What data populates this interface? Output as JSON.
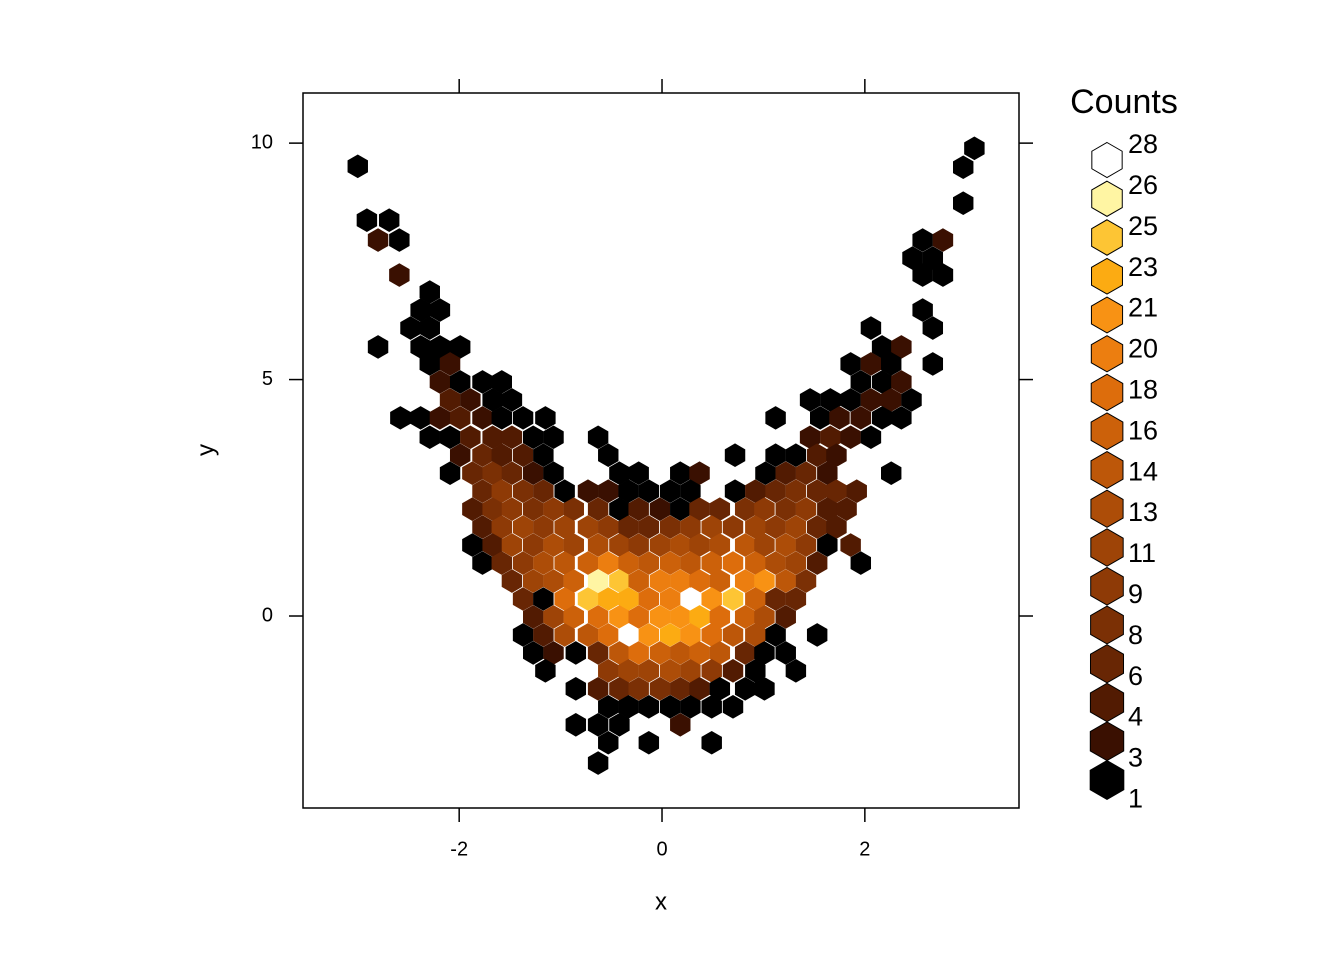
{
  "chart_data": {
    "type": "hexbin",
    "x_label": "x",
    "y_label": "y",
    "xlim": [
      -3.54,
      3.52
    ],
    "ylim": [
      -4.06,
      11.06
    ],
    "xticks": [
      -2,
      0,
      2
    ],
    "yticks": [
      0,
      5,
      10
    ],
    "legend": {
      "title": "Counts",
      "position": "right",
      "levels": [
        {
          "value": 28,
          "color": "#ffffff"
        },
        {
          "value": 26,
          "color": "#fff5a3"
        },
        {
          "value": 25,
          "color": "#fdc534"
        },
        {
          "value": 23,
          "color": "#fcab12"
        },
        {
          "value": 21,
          "color": "#f89214"
        },
        {
          "value": 20,
          "color": "#ec7e10"
        },
        {
          "value": 18,
          "color": "#dd6d0c"
        },
        {
          "value": 16,
          "color": "#cc610a"
        },
        {
          "value": 14,
          "color": "#bd5709"
        },
        {
          "value": 13,
          "color": "#ad4d08"
        },
        {
          "value": 11,
          "color": "#9e4407"
        },
        {
          "value": 9,
          "color": "#8e3a06"
        },
        {
          "value": 8,
          "color": "#7b3005"
        },
        {
          "value": 6,
          "color": "#682604"
        },
        {
          "value": 4,
          "color": "#521b02"
        },
        {
          "value": 3,
          "color": "#3a1001"
        },
        {
          "value": 1,
          "color": "#000000"
        }
      ]
    },
    "cells": [
      [
        -3.0,
        9.51,
        1
      ],
      [
        3.08,
        9.89,
        1
      ],
      [
        2.97,
        9.49,
        1
      ],
      [
        2.97,
        8.73,
        1
      ],
      [
        -2.91,
        8.37,
        1
      ],
      [
        -2.69,
        8.37,
        1
      ],
      [
        -2.8,
        7.95,
        3
      ],
      [
        -2.59,
        7.95,
        1
      ],
      [
        2.57,
        7.95,
        1
      ],
      [
        2.77,
        7.95,
        3
      ],
      [
        2.47,
        7.57,
        1
      ],
      [
        2.67,
        7.57,
        1
      ],
      [
        -2.59,
        7.21,
        3
      ],
      [
        2.57,
        7.21,
        1
      ],
      [
        2.77,
        7.21,
        1
      ],
      [
        -2.29,
        6.85,
        1
      ],
      [
        -2.38,
        6.47,
        1
      ],
      [
        -2.19,
        6.47,
        1
      ],
      [
        2.57,
        6.47,
        1
      ],
      [
        -2.48,
        6.09,
        1
      ],
      [
        -2.29,
        6.09,
        1
      ],
      [
        2.06,
        6.09,
        1
      ],
      [
        2.67,
        6.09,
        1
      ],
      [
        -2.8,
        5.69,
        1
      ],
      [
        -2.38,
        5.69,
        1
      ],
      [
        -2.19,
        5.69,
        1
      ],
      [
        -1.99,
        5.69,
        1
      ],
      [
        2.17,
        5.69,
        1
      ],
      [
        2.36,
        5.69,
        3
      ],
      [
        -2.29,
        5.33,
        1
      ],
      [
        -2.09,
        5.33,
        3
      ],
      [
        1.86,
        5.33,
        1
      ],
      [
        2.06,
        5.33,
        3
      ],
      [
        2.26,
        5.33,
        1
      ],
      [
        2.67,
        5.33,
        1
      ],
      [
        -2.19,
        4.95,
        3
      ],
      [
        -1.99,
        4.95,
        1
      ],
      [
        -1.77,
        4.95,
        1
      ],
      [
        -1.58,
        4.95,
        1
      ],
      [
        1.96,
        4.95,
        1
      ],
      [
        2.17,
        4.95,
        1
      ],
      [
        2.36,
        4.95,
        3
      ],
      [
        -2.09,
        4.57,
        4
      ],
      [
        -1.89,
        4.57,
        3
      ],
      [
        -1.67,
        4.57,
        1
      ],
      [
        -1.48,
        4.57,
        1
      ],
      [
        1.46,
        4.57,
        1
      ],
      [
        1.66,
        4.57,
        1
      ],
      [
        1.86,
        4.57,
        1
      ],
      [
        2.06,
        4.57,
        3
      ],
      [
        2.26,
        4.57,
        3
      ],
      [
        2.46,
        4.57,
        1
      ],
      [
        -2.58,
        4.19,
        1
      ],
      [
        -2.38,
        4.19,
        1
      ],
      [
        -2.19,
        4.19,
        3
      ],
      [
        -1.99,
        4.19,
        4
      ],
      [
        -1.77,
        4.19,
        3
      ],
      [
        -1.58,
        4.19,
        1
      ],
      [
        -1.37,
        4.19,
        1
      ],
      [
        -1.15,
        4.19,
        1
      ],
      [
        1.12,
        4.19,
        1
      ],
      [
        1.56,
        4.19,
        1
      ],
      [
        1.75,
        4.19,
        3
      ],
      [
        1.96,
        4.19,
        3
      ],
      [
        2.17,
        4.19,
        1
      ],
      [
        2.36,
        4.19,
        1
      ],
      [
        -2.29,
        3.78,
        1
      ],
      [
        -2.09,
        3.78,
        1
      ],
      [
        -1.89,
        3.78,
        4
      ],
      [
        -1.67,
        3.78,
        4
      ],
      [
        -1.48,
        3.78,
        4
      ],
      [
        -1.27,
        3.78,
        1
      ],
      [
        -1.07,
        3.78,
        1
      ],
      [
        -0.63,
        3.78,
        1
      ],
      [
        1.46,
        3.78,
        3
      ],
      [
        1.66,
        3.78,
        4
      ],
      [
        1.86,
        3.78,
        3
      ],
      [
        2.06,
        3.78,
        1
      ],
      [
        -1.99,
        3.4,
        3
      ],
      [
        -1.77,
        3.4,
        6
      ],
      [
        -1.58,
        3.4,
        4
      ],
      [
        -1.37,
        3.4,
        4
      ],
      [
        -1.17,
        3.4,
        1
      ],
      [
        -0.53,
        3.4,
        1
      ],
      [
        0.72,
        3.4,
        1
      ],
      [
        1.12,
        3.4,
        1
      ],
      [
        1.32,
        3.4,
        1
      ],
      [
        1.53,
        3.4,
        4
      ],
      [
        1.72,
        3.4,
        3
      ],
      [
        -2.09,
        3.02,
        1
      ],
      [
        -1.87,
        3.02,
        6
      ],
      [
        -1.67,
        3.02,
        8
      ],
      [
        -1.48,
        3.02,
        6
      ],
      [
        -1.27,
        3.02,
        3
      ],
      [
        -1.07,
        3.02,
        1
      ],
      [
        -0.42,
        3.02,
        1
      ],
      [
        -0.23,
        3.02,
        1
      ],
      [
        0.18,
        3.02,
        1
      ],
      [
        0.37,
        3.02,
        3
      ],
      [
        1.02,
        3.02,
        1
      ],
      [
        1.22,
        3.02,
        4
      ],
      [
        1.42,
        3.02,
        6
      ],
      [
        1.63,
        3.02,
        3
      ],
      [
        2.26,
        3.02,
        1
      ],
      [
        -1.77,
        2.64,
        6
      ],
      [
        -1.58,
        2.64,
        9
      ],
      [
        -1.37,
        2.64,
        8
      ],
      [
        -1.17,
        2.64,
        6
      ],
      [
        -0.96,
        2.64,
        1
      ],
      [
        -0.73,
        2.64,
        3
      ],
      [
        -0.53,
        2.64,
        3
      ],
      [
        -0.33,
        2.64,
        1
      ],
      [
        -0.13,
        2.64,
        1
      ],
      [
        0.08,
        2.64,
        1
      ],
      [
        0.28,
        2.64,
        1
      ],
      [
        0.72,
        2.64,
        1
      ],
      [
        0.92,
        2.64,
        4
      ],
      [
        1.12,
        2.64,
        6
      ],
      [
        1.32,
        2.64,
        8
      ],
      [
        1.53,
        2.64,
        6
      ],
      [
        1.72,
        2.64,
        6
      ],
      [
        1.92,
        2.64,
        4
      ],
      [
        -1.87,
        2.26,
        4
      ],
      [
        -1.67,
        2.26,
        8
      ],
      [
        -1.48,
        2.26,
        9
      ],
      [
        -1.27,
        2.26,
        8
      ],
      [
        -1.07,
        2.26,
        9
      ],
      [
        -0.87,
        2.26,
        8
      ],
      [
        -0.63,
        2.26,
        6
      ],
      [
        -0.42,
        2.26,
        1
      ],
      [
        -0.23,
        2.26,
        4
      ],
      [
        -0.02,
        2.26,
        3
      ],
      [
        0.18,
        2.26,
        1
      ],
      [
        0.37,
        2.26,
        6
      ],
      [
        0.57,
        2.26,
        6
      ],
      [
        0.82,
        2.26,
        8
      ],
      [
        1.01,
        2.26,
        9
      ],
      [
        1.22,
        2.26,
        8
      ],
      [
        1.42,
        2.26,
        9
      ],
      [
        1.63,
        2.26,
        4
      ],
      [
        1.82,
        2.26,
        4
      ],
      [
        -1.77,
        1.88,
        4
      ],
      [
        -1.58,
        1.88,
        9
      ],
      [
        -1.37,
        1.88,
        11
      ],
      [
        -1.17,
        1.88,
        9
      ],
      [
        -0.96,
        1.88,
        11
      ],
      [
        -0.73,
        1.88,
        11
      ],
      [
        -0.53,
        1.88,
        9
      ],
      [
        -0.33,
        1.88,
        6
      ],
      [
        -0.13,
        1.88,
        6
      ],
      [
        0.08,
        1.88,
        8
      ],
      [
        0.28,
        1.88,
        9
      ],
      [
        0.49,
        1.88,
        11
      ],
      [
        0.7,
        1.88,
        9
      ],
      [
        0.92,
        1.88,
        11
      ],
      [
        1.12,
        1.88,
        9
      ],
      [
        1.32,
        1.88,
        11
      ],
      [
        1.53,
        1.88,
        6
      ],
      [
        1.72,
        1.88,
        4
      ],
      [
        -1.87,
        1.5,
        1
      ],
      [
        -1.67,
        1.5,
        4
      ],
      [
        -1.48,
        1.5,
        11
      ],
      [
        -1.27,
        1.5,
        9
      ],
      [
        -1.07,
        1.5,
        13
      ],
      [
        -0.87,
        1.5,
        11
      ],
      [
        -0.63,
        1.5,
        13
      ],
      [
        -0.42,
        1.5,
        11
      ],
      [
        -0.23,
        1.5,
        9
      ],
      [
        -0.02,
        1.5,
        11
      ],
      [
        0.18,
        1.5,
        13
      ],
      [
        0.37,
        1.5,
        11
      ],
      [
        0.57,
        1.5,
        13
      ],
      [
        0.82,
        1.5,
        14
      ],
      [
        1.01,
        1.5,
        11
      ],
      [
        1.22,
        1.5,
        13
      ],
      [
        1.42,
        1.5,
        9
      ],
      [
        1.63,
        1.5,
        1
      ],
      [
        1.86,
        1.5,
        4
      ],
      [
        -1.77,
        1.12,
        1
      ],
      [
        -1.58,
        1.12,
        6
      ],
      [
        -1.37,
        1.12,
        9
      ],
      [
        -1.17,
        1.12,
        13
      ],
      [
        -0.96,
        1.12,
        14
      ],
      [
        -0.73,
        1.12,
        16
      ],
      [
        -0.53,
        1.12,
        20
      ],
      [
        -0.33,
        1.12,
        16
      ],
      [
        -0.13,
        1.12,
        14
      ],
      [
        0.08,
        1.12,
        16
      ],
      [
        0.28,
        1.12,
        14
      ],
      [
        0.49,
        1.12,
        16
      ],
      [
        0.7,
        1.12,
        18
      ],
      [
        0.92,
        1.12,
        16
      ],
      [
        1.12,
        1.12,
        13
      ],
      [
        1.32,
        1.12,
        11
      ],
      [
        1.53,
        1.12,
        4
      ],
      [
        1.96,
        1.12,
        1
      ],
      [
        -1.48,
        0.74,
        6
      ],
      [
        -1.27,
        0.74,
        11
      ],
      [
        -1.07,
        0.74,
        13
      ],
      [
        -0.87,
        0.74,
        16
      ],
      [
        -0.63,
        0.74,
        26
      ],
      [
        -0.42,
        0.74,
        25
      ],
      [
        -0.23,
        0.74,
        16
      ],
      [
        -0.02,
        0.74,
        20
      ],
      [
        0.18,
        0.74,
        20
      ],
      [
        0.37,
        0.74,
        18
      ],
      [
        0.57,
        0.74,
        16
      ],
      [
        0.82,
        0.74,
        20
      ],
      [
        1.01,
        0.74,
        21
      ],
      [
        1.22,
        0.74,
        14
      ],
      [
        1.42,
        0.74,
        8
      ],
      [
        -1.37,
        0.36,
        6
      ],
      [
        -1.17,
        0.36,
        1
      ],
      [
        -0.96,
        0.36,
        18
      ],
      [
        -0.73,
        0.36,
        25
      ],
      [
        -0.53,
        0.36,
        23
      ],
      [
        -0.33,
        0.36,
        23
      ],
      [
        -0.13,
        0.36,
        18
      ],
      [
        0.08,
        0.36,
        20
      ],
      [
        0.29,
        0.36,
        28
      ],
      [
        0.49,
        0.36,
        21
      ],
      [
        0.7,
        0.36,
        25
      ],
      [
        0.92,
        0.36,
        16
      ],
      [
        1.12,
        0.36,
        6
      ],
      [
        1.32,
        0.36,
        6
      ],
      [
        -1.27,
        -0.02,
        4
      ],
      [
        -1.07,
        -0.02,
        11
      ],
      [
        -0.87,
        -0.02,
        16
      ],
      [
        -0.63,
        -0.02,
        18
      ],
      [
        -0.42,
        -0.02,
        21
      ],
      [
        -0.23,
        -0.02,
        18
      ],
      [
        -0.02,
        -0.02,
        21
      ],
      [
        0.18,
        -0.02,
        21
      ],
      [
        0.37,
        -0.02,
        23
      ],
      [
        0.57,
        -0.02,
        18
      ],
      [
        0.82,
        -0.02,
        16
      ],
      [
        1.01,
        -0.02,
        13
      ],
      [
        1.22,
        -0.02,
        4
      ],
      [
        -1.37,
        -0.4,
        1
      ],
      [
        -1.17,
        -0.4,
        4
      ],
      [
        -0.96,
        -0.4,
        13
      ],
      [
        -0.73,
        -0.4,
        14
      ],
      [
        -0.53,
        -0.4,
        18
      ],
      [
        -0.33,
        -0.4,
        28
      ],
      [
        -0.13,
        -0.4,
        21
      ],
      [
        0.08,
        -0.4,
        23
      ],
      [
        0.28,
        -0.4,
        21
      ],
      [
        0.49,
        -0.4,
        18
      ],
      [
        0.7,
        -0.4,
        14
      ],
      [
        0.92,
        -0.4,
        13
      ],
      [
        1.12,
        -0.4,
        1
      ],
      [
        1.53,
        -0.4,
        1
      ],
      [
        -1.27,
        -0.78,
        1
      ],
      [
        -1.07,
        -0.78,
        3
      ],
      [
        -0.85,
        -0.78,
        1
      ],
      [
        -0.63,
        -0.78,
        6
      ],
      [
        -0.42,
        -0.78,
        14
      ],
      [
        -0.23,
        -0.78,
        18
      ],
      [
        -0.02,
        -0.78,
        16
      ],
      [
        0.18,
        -0.78,
        14
      ],
      [
        0.37,
        -0.78,
        16
      ],
      [
        0.57,
        -0.78,
        14
      ],
      [
        0.82,
        -0.78,
        6
      ],
      [
        1.01,
        -0.78,
        1
      ],
      [
        1.22,
        -0.78,
        1
      ],
      [
        -1.15,
        -1.16,
        1
      ],
      [
        -0.53,
        -1.16,
        9
      ],
      [
        -0.33,
        -1.16,
        11
      ],
      [
        -0.13,
        -1.16,
        11
      ],
      [
        0.08,
        -1.16,
        13
      ],
      [
        0.28,
        -1.16,
        11
      ],
      [
        0.49,
        -1.16,
        9
      ],
      [
        0.7,
        -1.16,
        4
      ],
      [
        0.92,
        -1.16,
        1
      ],
      [
        1.32,
        -1.16,
        1
      ],
      [
        -0.85,
        -1.54,
        1
      ],
      [
        -0.63,
        -1.54,
        4
      ],
      [
        -0.42,
        -1.54,
        6
      ],
      [
        -0.23,
        -1.54,
        8
      ],
      [
        -0.02,
        -1.54,
        8
      ],
      [
        0.18,
        -1.54,
        6
      ],
      [
        0.37,
        -1.54,
        4
      ],
      [
        0.57,
        -1.54,
        1
      ],
      [
        0.82,
        -1.54,
        1
      ],
      [
        1.01,
        -1.54,
        1
      ],
      [
        -0.53,
        -1.92,
        1
      ],
      [
        -0.33,
        -1.92,
        1
      ],
      [
        -0.13,
        -1.92,
        1
      ],
      [
        0.08,
        -1.92,
        1
      ],
      [
        0.28,
        -1.92,
        1
      ],
      [
        0.49,
        -1.92,
        1
      ],
      [
        0.7,
        -1.92,
        1
      ],
      [
        -0.85,
        -2.3,
        1
      ],
      [
        -0.63,
        -2.3,
        1
      ],
      [
        -0.42,
        -2.3,
        1
      ],
      [
        0.18,
        -2.3,
        3
      ],
      [
        -0.53,
        -2.68,
        1
      ],
      [
        -0.13,
        -2.68,
        1
      ],
      [
        0.49,
        -2.68,
        1
      ],
      [
        -0.63,
        -3.11,
        1
      ]
    ]
  }
}
